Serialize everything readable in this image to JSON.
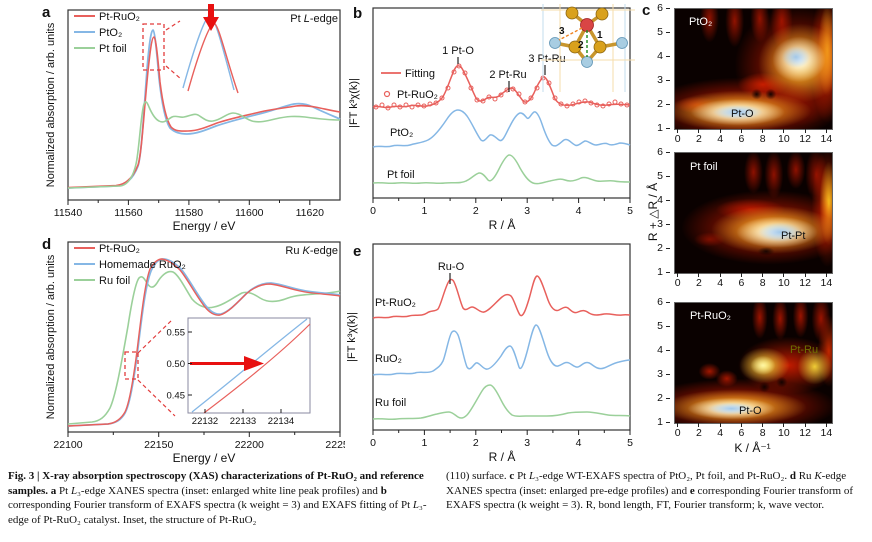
{
  "panels": {
    "a": {
      "label": "a",
      "edge_label": [
        "Pt ",
        "L",
        "-edge"
      ],
      "legend": [
        {
          "name": "Pt-RuO₂",
          "color": "#e8605c"
        },
        {
          "name": "PtO₂",
          "color": "#85b7e5"
        },
        {
          "name": "Pt foil",
          "color": "#9bd09a"
        }
      ],
      "x_ticks": [
        "11540",
        "11560",
        "11580",
        "11600",
        "11620"
      ],
      "xlabel": "Energy / eV",
      "ylabel": "Normalized absorption / arb. units"
    },
    "b": {
      "label": "b",
      "legend_fit": "Fitting",
      "legend_data": "Pt-RuO₂",
      "curve_labels": [
        "PtO₂",
        "Pt foil"
      ],
      "annotations": [
        "1 Pt-O",
        "2 Pt-Ru",
        "3 Pt-Ru"
      ],
      "inset_bond_numbers": [
        "1",
        "2",
        "3"
      ],
      "x_ticks": [
        "0",
        "1",
        "2",
        "3",
        "4",
        "5"
      ],
      "xlabel": "R / Å",
      "ylabel": "|FT k³χ(k)|"
    },
    "c": {
      "label": "c",
      "x_ticks": [
        "0",
        "2",
        "4",
        "6",
        "8",
        "10",
        "12",
        "14"
      ],
      "y_ticks": [
        "6",
        "5",
        "4",
        "3",
        "2",
        "1"
      ],
      "xlabel": "K / Å⁻¹",
      "ylabel": "R + △R / Å",
      "maps": [
        {
          "title": "PtO₂",
          "annotation": "Pt-O"
        },
        {
          "title": "Pt foil",
          "annotation": "Pt-Pt"
        },
        {
          "title": "Pt-RuO₂",
          "annotation": "Pt-Ru",
          "annotation2": "Pt-O"
        }
      ]
    },
    "d": {
      "label": "d",
      "edge_label": [
        "Ru ",
        "K",
        "-edge"
      ],
      "legend": [
        {
          "name": "Pt-RuO₂",
          "color": "#e8605c"
        },
        {
          "name": "Homemade RuO₂",
          "color": "#85b7e5"
        },
        {
          "name": "Ru foil",
          "color": "#9bd09a"
        }
      ],
      "x_ticks": [
        "22100",
        "22150",
        "22200",
        "22250"
      ],
      "xlabel": "Energy / eV",
      "ylabel": "Normalized absorption / arb. units",
      "inset": {
        "x_ticks": [
          "22132",
          "22133",
          "22134"
        ],
        "y_ticks": [
          "0.55",
          "0.50",
          "0.45"
        ]
      }
    },
    "e": {
      "label": "e",
      "curve_labels": [
        "Pt-RuO₂",
        "RuO₂",
        "Ru foil"
      ],
      "annotation": "Ru-O",
      "x_ticks": [
        "0",
        "1",
        "2",
        "3",
        "4",
        "5"
      ],
      "xlabel": "R / Å",
      "ylabel": "|FT k³χ(k)|"
    }
  },
  "colors": {
    "pt_ruo2_red": "#e8605c",
    "pto2_blue": "#85b7e5",
    "foil_green": "#9bd09a",
    "annotation_green": "#1d8a1d",
    "annotation_orange": "#ef8220",
    "heatmap_label_olive": "#6e6e00",
    "arrow_red": "#e81010"
  },
  "caption": {
    "left": [
      {
        "style": "bold",
        "text": "Fig. 3 | X-ray absorption spectroscopy (XAS) characterizations of Pt-RuO₂ and reference samples. "
      },
      {
        "style": "bold",
        "text": "a"
      },
      {
        "style": "normal",
        "text": " Pt "
      },
      {
        "style": "italic",
        "text": "L"
      },
      {
        "style": "normal",
        "text": "₃-edge XANES spectra (inset: enlarged white line peak profiles) and "
      },
      {
        "style": "bold",
        "text": "b"
      },
      {
        "style": "normal",
        "text": " corresponding Fourier transform of EXAFS spectra (k weight = 3) and EXAFS fitting of Pt "
      },
      {
        "style": "italic",
        "text": "L"
      },
      {
        "style": "normal",
        "text": "₃-edge of Pt-RuO₂ catalyst. Inset, the structure of Pt-RuO₂"
      }
    ],
    "right": [
      {
        "style": "normal",
        "text": "(110) surface. "
      },
      {
        "style": "bold",
        "text": "c"
      },
      {
        "style": "normal",
        "text": " Pt "
      },
      {
        "style": "italic",
        "text": "L"
      },
      {
        "style": "normal",
        "text": "₃-edge WT-EXAFS spectra of PtO₂, Pt foil, and Pt-RuO₂. "
      },
      {
        "style": "bold",
        "text": "d"
      },
      {
        "style": "normal",
        "text": " Ru "
      },
      {
        "style": "italic",
        "text": "K"
      },
      {
        "style": "normal",
        "text": "-edge XANES spectra (inset: enlarged pre-edge profiles) and "
      },
      {
        "style": "bold",
        "text": "e"
      },
      {
        "style": "normal",
        "text": " corresponding Fourier transform of EXAFS spectra (k weight = 3). R, bond length, FT, Fourier transform; k, wave vector."
      }
    ]
  },
  "chart_data": [
    {
      "id": "a",
      "type": "line",
      "title": "Pt L-edge XANES",
      "xlabel": "Energy / eV",
      "ylabel": "Normalized absorption / arb. units",
      "xlim": [
        11540,
        11630
      ],
      "legend_position": "top-left",
      "series": [
        {
          "name": "Pt-RuO₂",
          "color": "#e8605c",
          "x": [
            11540,
            11558,
            11562,
            11565,
            11568,
            11571,
            11575,
            11580,
            11590,
            11600,
            11610,
            11615,
            11622,
            11630
          ],
          "y": [
            0.04,
            0.06,
            0.18,
            0.55,
            0.93,
            0.6,
            0.36,
            0.34,
            0.38,
            0.43,
            0.49,
            0.51,
            0.48,
            0.46
          ]
        },
        {
          "name": "PtO₂",
          "color": "#85b7e5",
          "x": [
            11540,
            11558,
            11562,
            11565,
            11568,
            11571,
            11575,
            11580,
            11590,
            11600,
            11610,
            11615,
            11622,
            11630
          ],
          "y": [
            0.04,
            0.06,
            0.19,
            0.58,
            0.97,
            0.58,
            0.34,
            0.33,
            0.37,
            0.43,
            0.5,
            0.52,
            0.48,
            0.43
          ]
        },
        {
          "name": "Pt foil",
          "color": "#9bd09a",
          "x": [
            11540,
            11558,
            11562,
            11565,
            11569,
            11574,
            11580,
            11587,
            11594,
            11602,
            11610,
            11620,
            11630
          ],
          "y": [
            0.04,
            0.06,
            0.25,
            0.52,
            0.45,
            0.42,
            0.44,
            0.42,
            0.45,
            0.41,
            0.42,
            0.43,
            0.42
          ]
        }
      ]
    },
    {
      "id": "b",
      "type": "line",
      "title": "Fourier transform of EXAFS, Pt L₃-edge (k weight = 3)",
      "xlabel": "R / Å",
      "ylabel": "|FT k³χ(k)|",
      "xlim": [
        0,
        5
      ],
      "series": [
        {
          "name": "Pt-RuO₂ (circles) + Fitting (line)",
          "peaks": [
            {
              "R": 1.65,
              "assignment": "1 Pt-O"
            },
            {
              "R": 2.65,
              "assignment": "2 Pt-Ru"
            },
            {
              "R": 3.35,
              "assignment": "3 Pt-Ru"
            }
          ]
        },
        {
          "name": "PtO₂",
          "peaks": [
            {
              "R": 1.7
            },
            {
              "R": 2.85
            },
            {
              "R": 3.1
            }
          ]
        },
        {
          "name": "Pt foil",
          "peaks": [
            {
              "R": 2.6
            }
          ]
        }
      ]
    },
    {
      "id": "c",
      "type": "heatmap",
      "title": "Pt L₃-edge WT-EXAFS",
      "xlabel": "K / Å⁻¹",
      "ylabel": "R + ΔR / Å",
      "xlim": [
        0,
        15
      ],
      "ylim": [
        1,
        6
      ],
      "maps": [
        {
          "name": "PtO₂",
          "maxima": [
            {
              "k": 6,
              "R": 1.6,
              "assignment": "Pt-O"
            },
            {
              "k": 12,
              "R": 3.0
            }
          ]
        },
        {
          "name": "Pt foil",
          "maxima": [
            {
              "k": 11,
              "R": 2.7,
              "assignment": "Pt-Pt"
            }
          ]
        },
        {
          "name": "Pt-RuO₂",
          "maxima": [
            {
              "k": 5.5,
              "R": 1.6,
              "assignment": "Pt-O"
            },
            {
              "k": 9.5,
              "R": 3.2,
              "assignment": "Pt-Ru"
            }
          ]
        }
      ]
    },
    {
      "id": "d",
      "type": "line",
      "title": "Ru K-edge XANES",
      "xlabel": "Energy / eV",
      "ylabel": "Normalized absorption / arb. units",
      "xlim": [
        22100,
        22250
      ],
      "series": [
        {
          "name": "Pt-RuO₂",
          "color": "#e8605c",
          "x": [
            22100,
            22120,
            22128,
            22134,
            22140,
            22148,
            22155,
            22165,
            22175,
            22190,
            22205,
            22215,
            22230,
            22250
          ],
          "y": [
            0.02,
            0.03,
            0.12,
            0.45,
            0.78,
            0.9,
            0.91,
            0.77,
            0.62,
            0.66,
            0.72,
            0.72,
            0.69,
            0.66
          ]
        },
        {
          "name": "Homemade RuO₂",
          "color": "#85b7e5",
          "x": [
            22100,
            22120,
            22128,
            22134,
            22140,
            22148,
            22155,
            22165,
            22175,
            22190,
            22205,
            22215,
            22230,
            22250
          ],
          "y": [
            0.02,
            0.03,
            0.11,
            0.43,
            0.77,
            0.9,
            0.91,
            0.78,
            0.62,
            0.65,
            0.72,
            0.72,
            0.69,
            0.65
          ]
        },
        {
          "name": "Ru foil",
          "color": "#9bd09a",
          "x": [
            22100,
            22112,
            22120,
            22126,
            22132,
            22138,
            22145,
            22152,
            22158,
            22163,
            22172,
            22182,
            22195,
            22208,
            22220,
            22235,
            22250
          ],
          "y": [
            0.02,
            0.04,
            0.12,
            0.38,
            0.68,
            0.81,
            0.74,
            0.77,
            0.84,
            0.86,
            0.72,
            0.6,
            0.65,
            0.7,
            0.66,
            0.64,
            0.68
          ]
        }
      ],
      "inset": {
        "xlim": [
          22131.5,
          22134.5
        ],
        "ylim": [
          0.43,
          0.57
        ],
        "x_ticks": [
          22132,
          22133,
          22134
        ],
        "y_ticks": [
          0.55,
          0.5,
          0.45
        ],
        "note": "pre-edge profiles crossing near 0.50"
      }
    },
    {
      "id": "e",
      "type": "line",
      "title": "Fourier transform of EXAFS, Ru K-edge (k weight = 3)",
      "xlabel": "R / Å",
      "ylabel": "|FT k³χ(k)|",
      "xlim": [
        0,
        5
      ],
      "series": [
        {
          "name": "Pt-RuO₂",
          "peaks": [
            {
              "R": 1.5,
              "assignment": "Ru-O"
            },
            {
              "R": 2.6
            },
            {
              "R": 3.2
            }
          ]
        },
        {
          "name": "RuO₂",
          "peaks": [
            {
              "R": 1.5
            },
            {
              "R": 2.6
            },
            {
              "R": 3.2
            }
          ]
        },
        {
          "name": "Ru foil",
          "peaks": [
            {
              "R": 2.35
            }
          ]
        }
      ]
    }
  ]
}
